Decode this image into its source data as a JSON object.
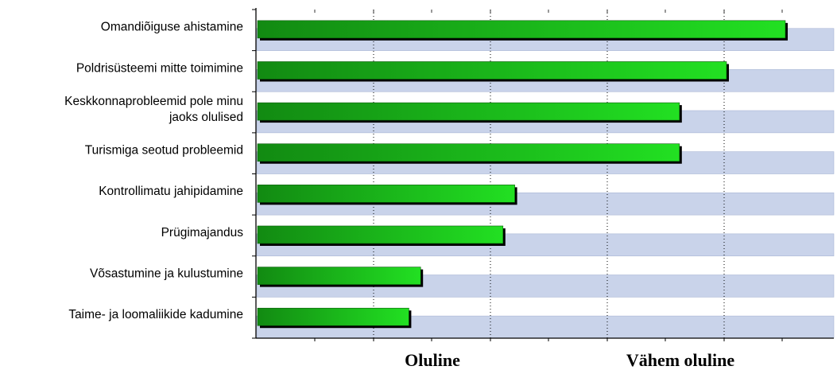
{
  "chart_data": {
    "type": "bar",
    "orientation": "horizontal",
    "categories": [
      "Omandiõiguse ahistamine",
      "Poldrisüsteemi mitte toimimine",
      "Keskkonnaprobleemid pole minu jaoks olulised",
      "Turismiga seotud probleemid",
      "Kontrollimatu jahipidamine",
      "Prügimajandus",
      "Võsastumine ja kulustumine",
      "Taime- ja loomaliikide kadumine"
    ],
    "category_lines": [
      [
        "Omandiõiguse ahistamine"
      ],
      [
        "Poldrisüsteemi mitte toimimine"
      ],
      [
        "Keskkonnaprobleemid pole minu",
        "jaoks olulised"
      ],
      [
        "Turismiga seotud probleemid"
      ],
      [
        "Kontrollimatu jahipidamine"
      ],
      [
        "Prügimajandus"
      ],
      [
        "Võsastumine ja kulustumine"
      ],
      [
        "Taime- ja loomaliikide kadumine"
      ]
    ],
    "values": [
      4.5,
      4.0,
      3.6,
      3.6,
      2.2,
      2.1,
      1.4,
      1.3
    ],
    "xlim": [
      0,
      4.5
    ],
    "x_axis_labels": [
      "Oluline",
      "Vähem oluline"
    ],
    "grid": true,
    "colors": {
      "bar_light": "#22e022",
      "bar_dark": "#128a12",
      "bar_shadow": "#000000",
      "stripe": "#c9d3ea",
      "stripe_border": "#a9b6d4",
      "grid": "#000000",
      "axis": "#000000"
    }
  }
}
